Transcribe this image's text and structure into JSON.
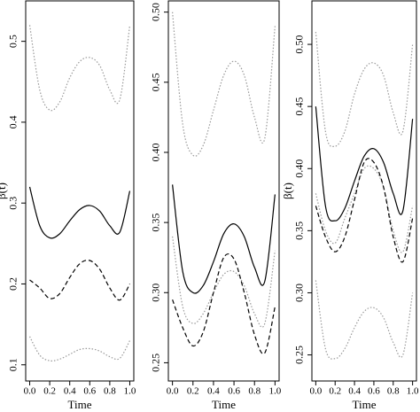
{
  "chart_data": [
    {
      "type": "line",
      "y_label": "β(t)",
      "x_label": "Time",
      "x": [
        0,
        0.1,
        0.2,
        0.3,
        0.4,
        0.5,
        0.6,
        0.7,
        0.8,
        0.9,
        1.0
      ],
      "xlim": [
        -0.04,
        1.04
      ],
      "ylim": [
        0.08,
        0.55
      ],
      "xticks": [
        {
          "value": 0,
          "label": "0.0"
        },
        0.2,
        0.4,
        0.6,
        0.8,
        {
          "value": 1,
          "label": "1.0"
        }
      ],
      "yticks": [
        0.1,
        0.2,
        0.3,
        0.4,
        0.5
      ],
      "series": [
        {
          "color": "#999999",
          "linestyle": "dotted",
          "values": [
            0.52,
            0.44,
            0.415,
            0.425,
            0.455,
            0.475,
            0.48,
            0.47,
            0.44,
            0.428,
            0.52
          ]
        },
        {
          "color": "#000000",
          "linestyle": "solid",
          "values": [
            0.32,
            0.272,
            0.257,
            0.262,
            0.278,
            0.292,
            0.297,
            0.29,
            0.272,
            0.264,
            0.315
          ]
        },
        {
          "color": "#000000",
          "linestyle": "dashed",
          "values": [
            0.205,
            0.195,
            0.182,
            0.188,
            0.208,
            0.225,
            0.229,
            0.218,
            0.195,
            0.18,
            0.2
          ]
        },
        {
          "color": "#999999",
          "linestyle": "dotted",
          "values": [
            0.135,
            0.112,
            0.105,
            0.107,
            0.113,
            0.119,
            0.12,
            0.117,
            0.11,
            0.108,
            0.13
          ]
        }
      ]
    },
    {
      "type": "line",
      "x_label": "Time",
      "x": [
        0,
        0.1,
        0.2,
        0.3,
        0.4,
        0.5,
        0.6,
        0.7,
        0.8,
        0.9,
        1.0
      ],
      "xlim": [
        -0.04,
        1.04
      ],
      "ylim": [
        0.237,
        0.508
      ],
      "xticks": [
        {
          "value": 0,
          "label": "0.0"
        },
        0.2,
        0.4,
        0.6,
        0.8,
        {
          "value": 1,
          "label": "1.0"
        }
      ],
      "yticks": [
        0.25,
        {
          "value": 0.3,
          "label": "0.30"
        },
        0.35,
        {
          "value": 0.4,
          "label": "0.40"
        },
        0.45,
        {
          "value": 0.5,
          "label": "0.50"
        }
      ],
      "series": [
        {
          "color": "#999999",
          "linestyle": "dotted",
          "values": [
            0.5,
            0.42,
            0.398,
            0.405,
            0.43,
            0.455,
            0.465,
            0.455,
            0.425,
            0.41,
            0.49
          ]
        },
        {
          "color": "#000000",
          "linestyle": "solid",
          "values": [
            0.377,
            0.315,
            0.3,
            0.305,
            0.322,
            0.342,
            0.349,
            0.34,
            0.318,
            0.308,
            0.37
          ]
        },
        {
          "color": "#999999",
          "linestyle": "dotted",
          "values": [
            0.34,
            0.29,
            0.278,
            0.285,
            0.3,
            0.313,
            0.315,
            0.305,
            0.285,
            0.278,
            0.33
          ]
        },
        {
          "color": "#000000",
          "linestyle": "dashed",
          "values": [
            0.295,
            0.275,
            0.262,
            0.272,
            0.3,
            0.325,
            0.324,
            0.3,
            0.27,
            0.257,
            0.29
          ]
        }
      ]
    },
    {
      "type": "line",
      "y_label": "β(t)",
      "x_label": "Time",
      "x": [
        0,
        0.1,
        0.2,
        0.3,
        0.4,
        0.5,
        0.6,
        0.7,
        0.8,
        0.9,
        1.0
      ],
      "xlim": [
        -0.04,
        1.04
      ],
      "ylim": [
        0.229,
        0.535
      ],
      "xticks": [
        {
          "value": 0,
          "label": "0.0"
        },
        0.2,
        0.4,
        0.6,
        0.8,
        {
          "value": 1,
          "label": "1.0"
        }
      ],
      "yticks": [
        0.25,
        {
          "value": 0.3,
          "label": "0.30"
        },
        0.35,
        {
          "value": 0.4,
          "label": "0.40"
        },
        0.45,
        {
          "value": 0.5,
          "label": "0.50"
        }
      ],
      "series": [
        {
          "color": "#999999",
          "linestyle": "dotted",
          "values": [
            0.51,
            0.43,
            0.418,
            0.43,
            0.46,
            0.48,
            0.485,
            0.475,
            0.445,
            0.43,
            0.5
          ]
        },
        {
          "color": "#000000",
          "linestyle": "solid",
          "values": [
            0.45,
            0.37,
            0.358,
            0.368,
            0.39,
            0.41,
            0.416,
            0.405,
            0.38,
            0.366,
            0.44
          ]
        },
        {
          "color": "#999999",
          "linestyle": "dotted",
          "values": [
            0.38,
            0.35,
            0.34,
            0.36,
            0.38,
            0.4,
            0.4,
            0.385,
            0.35,
            0.333,
            0.37
          ]
        },
        {
          "color": "#000000",
          "linestyle": "dashed",
          "values": [
            0.37,
            0.345,
            0.333,
            0.345,
            0.375,
            0.405,
            0.405,
            0.385,
            0.345,
            0.325,
            0.36
          ]
        },
        {
          "color": "#999999",
          "linestyle": "dotted",
          "values": [
            0.31,
            0.255,
            0.247,
            0.255,
            0.272,
            0.285,
            0.288,
            0.28,
            0.26,
            0.25,
            0.3
          ]
        }
      ]
    }
  ]
}
